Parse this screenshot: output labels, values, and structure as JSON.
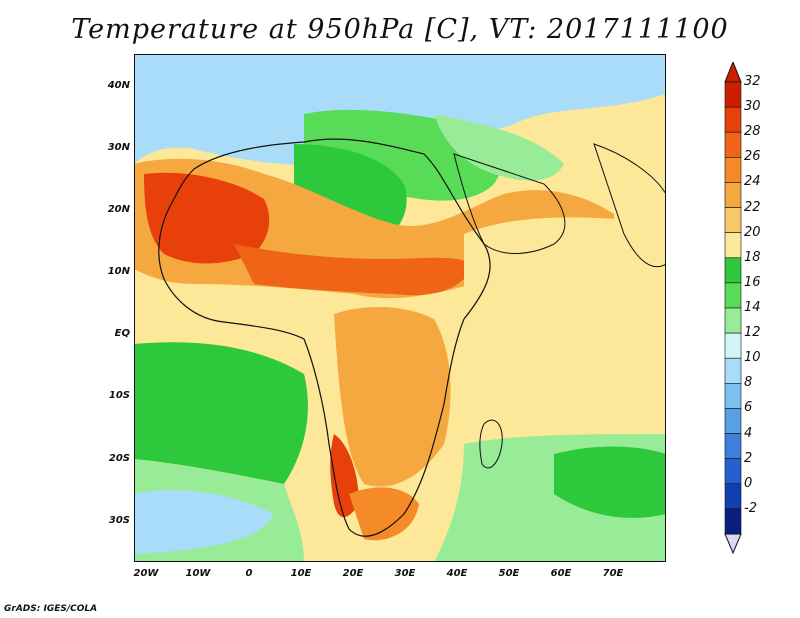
{
  "title": "Temperature at 950hPa [C], VT: 2017111100",
  "map": {
    "lat_labels": [
      "40N",
      "30N",
      "20N",
      "10N",
      "EQ",
      "10S",
      "20S",
      "30S"
    ],
    "lon_labels": [
      "20W",
      "10W",
      "0",
      "10E",
      "20E",
      "30E",
      "40E",
      "50E",
      "60E",
      "70E"
    ]
  },
  "colorbar": {
    "labels": [
      "32",
      "30",
      "28",
      "26",
      "24",
      "22",
      "20",
      "18",
      "16",
      "14",
      "12",
      "10",
      "8",
      "6",
      "4",
      "2",
      "0",
      "-2"
    ],
    "colors": [
      "#cc1e00",
      "#e8400a",
      "#f06418",
      "#f48a28",
      "#f6a840",
      "#f8c868",
      "#fce898",
      "#2ec83c",
      "#58dc58",
      "#98ec98",
      "#d2f6f6",
      "#a8dcf8",
      "#7cc0f0",
      "#58a0e4",
      "#3c80dc",
      "#2460d0",
      "#1040b0",
      "#0a1e80"
    ],
    "top_cap_color": "#cc1e00",
    "bottom_cap_color": "#d8d8f8"
  },
  "footer": "GrADS: IGES/COLA"
}
